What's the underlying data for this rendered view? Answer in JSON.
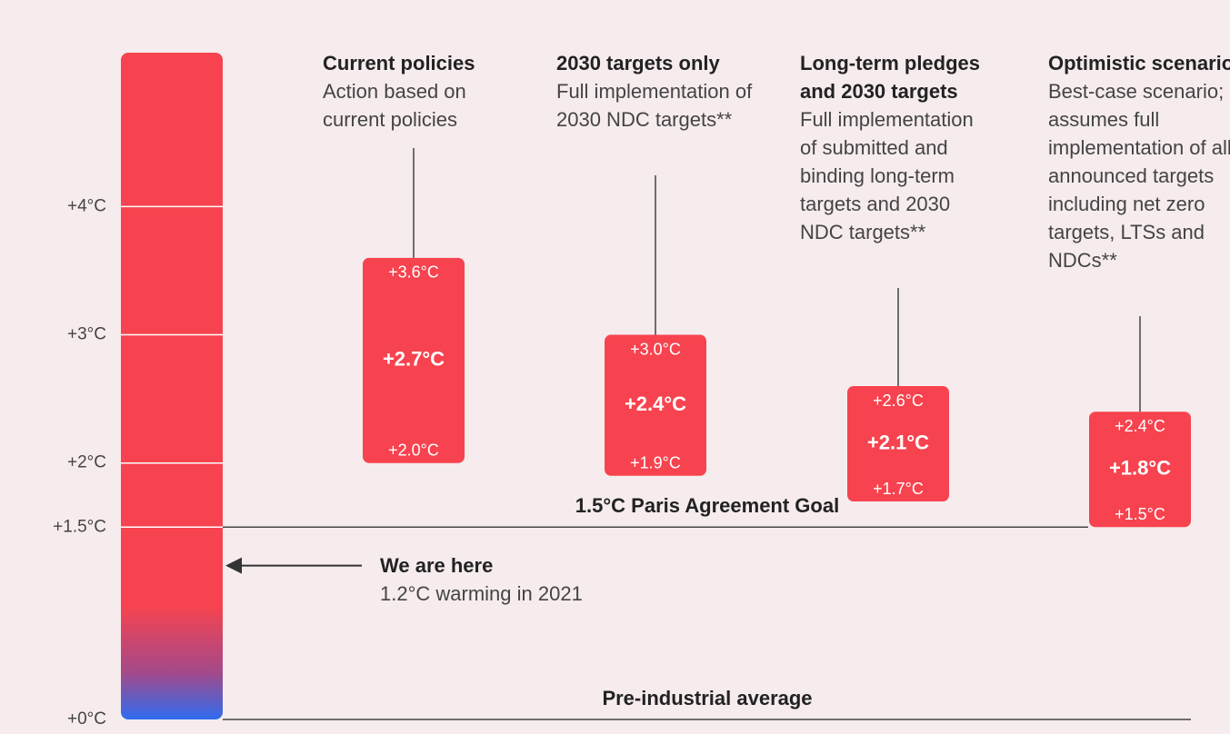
{
  "chart_data": {
    "type": "range",
    "ylim": [
      0,
      5.2
    ],
    "yticks": [
      {
        "value": 0,
        "label": "+0°C"
      },
      {
        "value": 1.5,
        "label": "+1.5°C"
      },
      {
        "value": 2,
        "label": "+2°C"
      },
      {
        "value": 3,
        "label": "+3°C"
      },
      {
        "value": 4,
        "label": "+4°C"
      }
    ],
    "categories": [
      "Current policies",
      "2030 targets only",
      "Long-term pledges and 2030 targets",
      "Optimistic scenario"
    ],
    "descriptions": [
      "Action based on current policies",
      "Full implementation of 2030 NDC targets**",
      "Full implementation of submitted and binding long-term targets and 2030 NDC targets**",
      "Best-case scenario; assumes full implementation of all announced targets including net zero targets, LTSs and NDCs**"
    ],
    "values": [
      2.7,
      2.4,
      2.1,
      1.8
    ],
    "value_labels": [
      "+2.7°C",
      "+2.4°C",
      "+2.1°C",
      "+1.8°C"
    ],
    "high": [
      3.6,
      3.0,
      2.6,
      2.4
    ],
    "high_labels": [
      "+3.6°C",
      "+3.0°C",
      "+2.6°C",
      "+2.4°C"
    ],
    "low": [
      2.0,
      1.9,
      1.7,
      1.5
    ],
    "low_labels": [
      "+2.0°C",
      "+1.9°C",
      "+1.7°C",
      "+1.5°C"
    ],
    "color": "#f7434f",
    "reference_lines": [
      {
        "value": 1.5,
        "label": "1.5°C Paris Agreement Goal"
      },
      {
        "value": 0,
        "label": "Pre-industrial average"
      }
    ],
    "marker": {
      "value": 1.2,
      "label": "We are here",
      "note": "1.2°C warming in 2021"
    }
  }
}
